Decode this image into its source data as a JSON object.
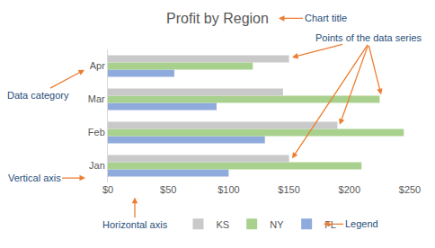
{
  "chart_data": {
    "type": "bar",
    "title": "Profit by Region",
    "orientation": "horizontal",
    "categories": [
      "Jan",
      "Feb",
      "Mar",
      "Apr"
    ],
    "series": [
      {
        "name": "KS",
        "color": "#c9c9c9",
        "values": [
          150,
          190,
          145,
          150
        ]
      },
      {
        "name": "NY",
        "color": "#a9d18e",
        "values": [
          210,
          245,
          225,
          120
        ]
      },
      {
        "name": "FL",
        "color": "#8faadc",
        "values": [
          100,
          130,
          90,
          55
        ]
      }
    ],
    "xlim": [
      0,
      250
    ],
    "xticks": [
      {
        "value": 0,
        "label": "$0"
      },
      {
        "value": 50,
        "label": "$50"
      },
      {
        "value": 100,
        "label": "$100"
      },
      {
        "value": 150,
        "label": "$150"
      },
      {
        "value": 200,
        "label": "$200"
      },
      {
        "value": 250,
        "label": "$250"
      }
    ],
    "grid": false,
    "legend": "bottom",
    "annotations": [
      "Chart title",
      "Data category",
      "Points of the data series",
      "Vertical axis",
      "Horizontal axis",
      "Legend"
    ]
  }
}
